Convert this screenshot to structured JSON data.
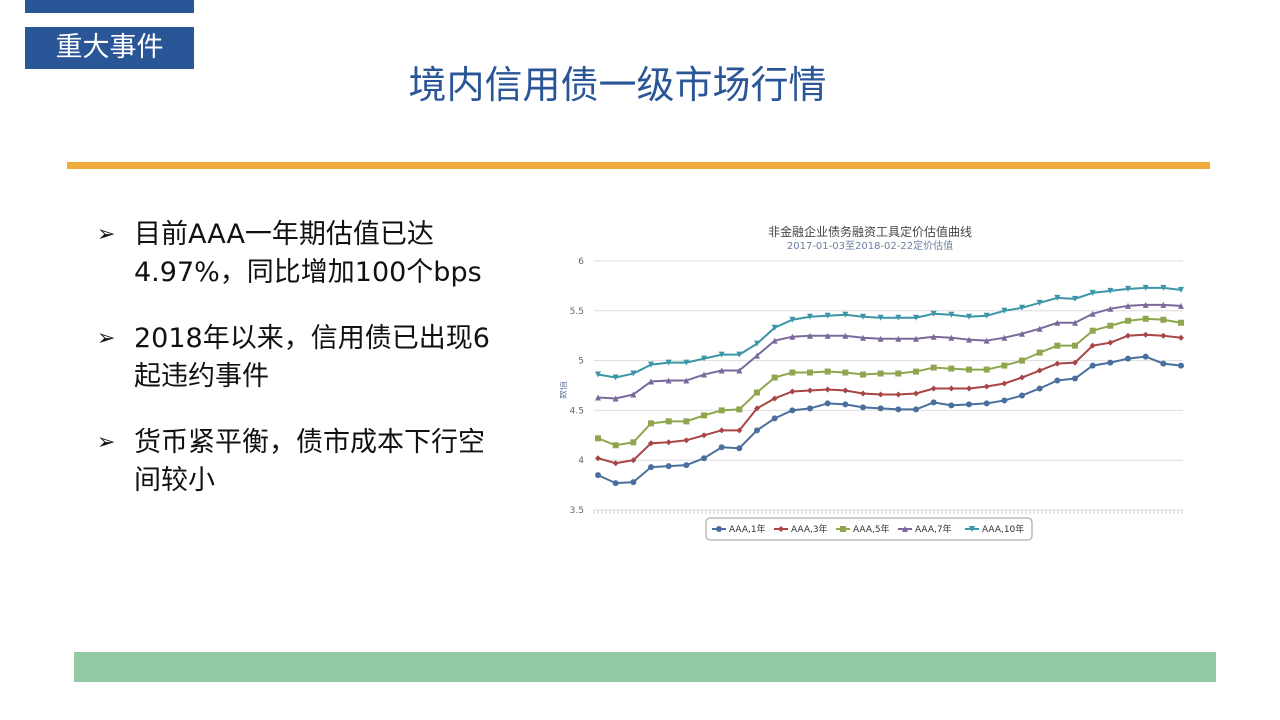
{
  "header": {
    "tag": "重大事件",
    "title": "境内信用债一级市场行情"
  },
  "bullets": [
    {
      "icon": "arrow-bullet-icon",
      "text": "目前AAA一年期估值已达4.97%，同比增加100个bps"
    },
    {
      "icon": "arrow-bullet-icon",
      "text": "2018年以来，信用债已出现6起违约事件"
    },
    {
      "icon": "arrow-bullet-icon",
      "text": "货币紧平衡，债市成本下行空间较小"
    }
  ],
  "chart_data": {
    "type": "line",
    "title": "非金融企业债务融资工具定价估值曲线",
    "subtitle": "2017-01-03至2018-02-22定价估值",
    "xlabel": "",
    "ylabel": "数值",
    "ylim": [
      3.5,
      6
    ],
    "yticks": [
      "3.5",
      "4",
      "4.5",
      "5",
      "5.5",
      "6"
    ],
    "grid": true,
    "legend": "bottom",
    "series": [
      {
        "name": "AAA,1年",
        "color": "#4a6f9c",
        "marker": "circle",
        "values": [
          3.85,
          3.77,
          3.78,
          3.93,
          3.94,
          3.95,
          4.02,
          4.13,
          4.12,
          4.3,
          4.42,
          4.5,
          4.52,
          4.57,
          4.56,
          4.53,
          4.52,
          4.51,
          4.51,
          4.58,
          4.55,
          4.56,
          4.57,
          4.6,
          4.65,
          4.72,
          4.8,
          4.82,
          4.95,
          4.98,
          5.02,
          5.04,
          4.97,
          4.95
        ]
      },
      {
        "name": "AAA,3年",
        "color": "#a84545",
        "marker": "diamond",
        "values": [
          4.02,
          3.97,
          4.0,
          4.17,
          4.18,
          4.2,
          4.25,
          4.3,
          4.3,
          4.52,
          4.62,
          4.69,
          4.7,
          4.71,
          4.7,
          4.67,
          4.66,
          4.66,
          4.67,
          4.72,
          4.72,
          4.72,
          4.74,
          4.77,
          4.83,
          4.9,
          4.97,
          4.98,
          5.15,
          5.18,
          5.25,
          5.26,
          5.25,
          5.23
        ]
      },
      {
        "name": "AAA,5年",
        "color": "#8fa64e",
        "marker": "square",
        "values": [
          4.22,
          4.15,
          4.18,
          4.37,
          4.39,
          4.39,
          4.45,
          4.5,
          4.51,
          4.68,
          4.83,
          4.88,
          4.88,
          4.89,
          4.88,
          4.86,
          4.87,
          4.87,
          4.89,
          4.93,
          4.92,
          4.91,
          4.91,
          4.95,
          5.0,
          5.08,
          5.15,
          5.15,
          5.3,
          5.35,
          5.4,
          5.42,
          5.41,
          5.38
        ]
      },
      {
        "name": "AAA,7年",
        "color": "#7a6a9c",
        "marker": "triangle",
        "values": [
          4.63,
          4.62,
          4.66,
          4.79,
          4.8,
          4.8,
          4.86,
          4.9,
          4.9,
          5.05,
          5.2,
          5.24,
          5.25,
          5.25,
          5.25,
          5.23,
          5.22,
          5.22,
          5.22,
          5.24,
          5.23,
          5.21,
          5.2,
          5.23,
          5.27,
          5.32,
          5.38,
          5.38,
          5.47,
          5.52,
          5.55,
          5.56,
          5.56,
          5.55
        ]
      },
      {
        "name": "AAA,10年",
        "color": "#3c96a8",
        "marker": "triangle-down",
        "values": [
          4.86,
          4.83,
          4.87,
          4.96,
          4.98,
          4.98,
          5.02,
          5.06,
          5.06,
          5.17,
          5.33,
          5.41,
          5.44,
          5.45,
          5.46,
          5.44,
          5.43,
          5.43,
          5.43,
          5.47,
          5.46,
          5.44,
          5.45,
          5.5,
          5.53,
          5.58,
          5.63,
          5.62,
          5.68,
          5.7,
          5.72,
          5.73,
          5.73,
          5.71
        ]
      }
    ]
  }
}
